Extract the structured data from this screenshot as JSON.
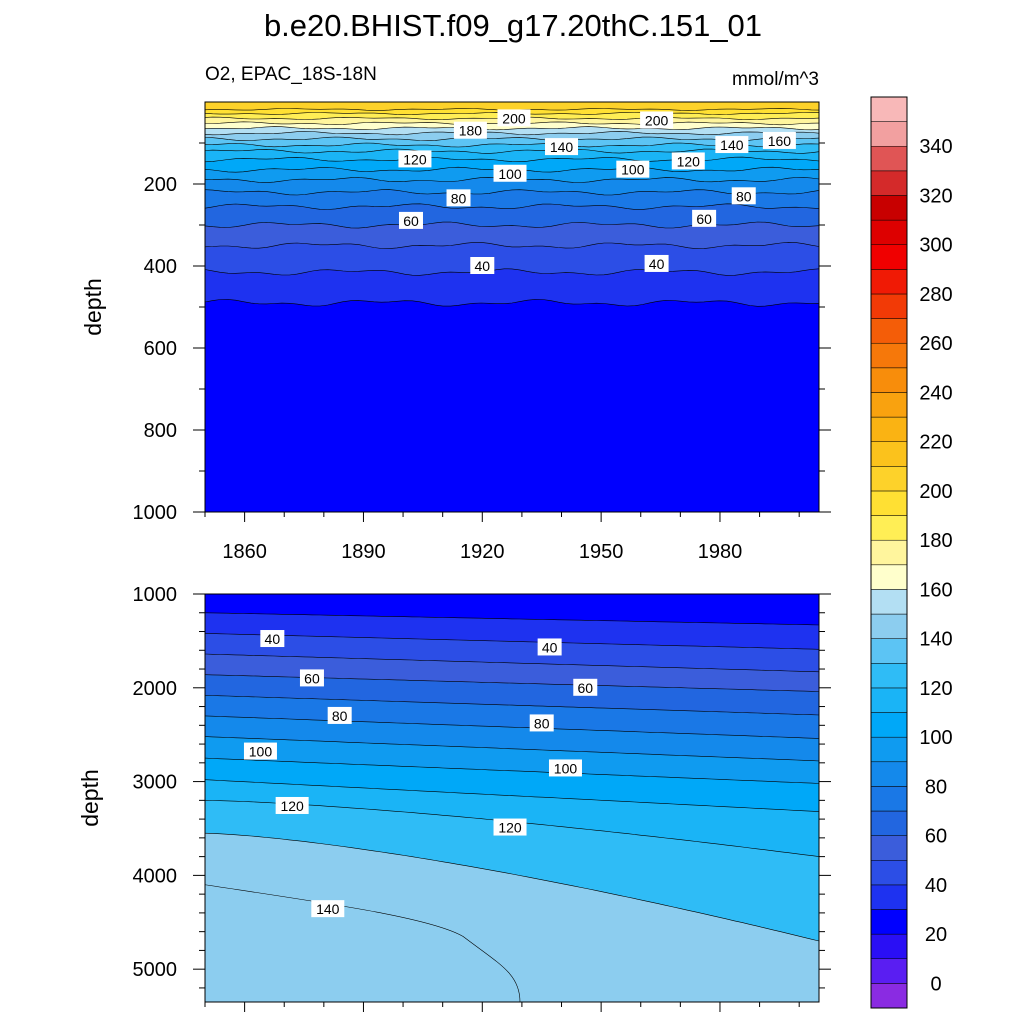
{
  "title": "b.e20.BHIST.f09_g17.20thC.151_01",
  "chart_data": [
    {
      "type": "contour",
      "panel": "upper",
      "left_label": "O2, EPAC_18S-18N",
      "right_label": "mmol/m^3",
      "ylabel": "depth",
      "xlabel": "",
      "x_range": [
        1850,
        2005
      ],
      "y_range": [
        0,
        1000
      ],
      "y_reversed": true,
      "y_ticks": [
        200,
        400,
        600,
        800,
        1000
      ],
      "x_ticks": [
        1860,
        1890,
        1920,
        1950,
        1980
      ],
      "y_tick_labels": [
        "200",
        "400",
        "600",
        "800",
        "1000"
      ],
      "x_tick_labels": [
        "1860",
        "1890",
        "1920",
        "1950",
        "1980"
      ],
      "contour_depths": [
        {
          "level": 200,
          "depth": 18
        },
        {
          "level": 190,
          "depth": 28
        },
        {
          "level": 180,
          "depth": 40
        },
        {
          "level": 170,
          "depth": 52
        },
        {
          "level": 160,
          "depth": 64
        },
        {
          "level": 150,
          "depth": 76
        },
        {
          "level": 140,
          "depth": 90
        },
        {
          "level": 130,
          "depth": 105
        },
        {
          "level": 120,
          "depth": 120
        },
        {
          "level": 110,
          "depth": 140
        },
        {
          "level": 100,
          "depth": 165
        },
        {
          "level": 90,
          "depth": 190
        },
        {
          "level": 80,
          "depth": 220
        },
        {
          "level": 70,
          "depth": 255
        },
        {
          "level": 60,
          "depth": 300
        },
        {
          "level": 50,
          "depth": 350
        },
        {
          "level": 40,
          "depth": 415
        },
        {
          "level": 30,
          "depth": 490
        }
      ],
      "contour_labels": [
        {
          "text": "200",
          "x": 1928,
          "depth": 40
        },
        {
          "text": "200",
          "x": 1964,
          "depth": 45
        },
        {
          "text": "180",
          "x": 1917,
          "depth": 70
        },
        {
          "text": "160",
          "x": 1995,
          "depth": 95
        },
        {
          "text": "140",
          "x": 1940,
          "depth": 110
        },
        {
          "text": "140",
          "x": 1983,
          "depth": 105
        },
        {
          "text": "120",
          "x": 1903,
          "depth": 140
        },
        {
          "text": "120",
          "x": 1972,
          "depth": 145
        },
        {
          "text": "100",
          "x": 1958,
          "depth": 165
        },
        {
          "text": "100",
          "x": 1927,
          "depth": 175
        },
        {
          "text": "80",
          "x": 1914,
          "depth": 235
        },
        {
          "text": "80",
          "x": 1986,
          "depth": 230
        },
        {
          "text": "60",
          "x": 1902,
          "depth": 290
        },
        {
          "text": "60",
          "x": 1976,
          "depth": 285
        },
        {
          "text": "40",
          "x": 1920,
          "depth": 400
        },
        {
          "text": "40",
          "x": 1964,
          "depth": 395
        }
      ]
    },
    {
      "type": "contour",
      "panel": "lower",
      "ylabel": "depth",
      "xlabel": "",
      "x_range": [
        1850,
        2005
      ],
      "y_range": [
        1000,
        5350
      ],
      "y_reversed": true,
      "y_ticks": [
        1000,
        2000,
        3000,
        4000,
        5000
      ],
      "y_tick_labels": [
        "1000",
        "2000",
        "3000",
        "4000",
        "5000"
      ],
      "contour_depths": [
        {
          "level": 30,
          "left": 1200,
          "right": 1330
        },
        {
          "level": 40,
          "left": 1420,
          "right": 1590
        },
        {
          "level": 50,
          "left": 1640,
          "right": 1830
        },
        {
          "level": 60,
          "left": 1860,
          "right": 2040
        },
        {
          "level": 70,
          "left": 2080,
          "right": 2290
        },
        {
          "level": 80,
          "left": 2300,
          "right": 2540
        },
        {
          "level": 90,
          "left": 2520,
          "right": 2780
        },
        {
          "level": 100,
          "left": 2750,
          "right": 3020
        },
        {
          "level": 110,
          "left": 2980,
          "right": 3320
        },
        {
          "level": 120,
          "left": 3200,
          "right": 3800
        },
        {
          "level": 130,
          "left": 3550,
          "right": 4700
        }
      ],
      "contour_labels": [
        {
          "text": "40",
          "x": 1867,
          "depth": 1480
        },
        {
          "text": "40",
          "x": 1937,
          "depth": 1570
        },
        {
          "text": "60",
          "x": 1877,
          "depth": 1900
        },
        {
          "text": "60",
          "x": 1946,
          "depth": 2000
        },
        {
          "text": "80",
          "x": 1884,
          "depth": 2300
        },
        {
          "text": "80",
          "x": 1935,
          "depth": 2380
        },
        {
          "text": "100",
          "x": 1864,
          "depth": 2680
        },
        {
          "text": "100",
          "x": 1941,
          "depth": 2860
        },
        {
          "text": "120",
          "x": 1872,
          "depth": 3260
        },
        {
          "text": "120",
          "x": 1927,
          "depth": 3490
        },
        {
          "text": "140",
          "x": 1881,
          "depth": 4360
        }
      ]
    },
    {
      "type": "colorbar",
      "levels": [
        -10,
        0,
        10,
        20,
        30,
        40,
        50,
        60,
        70,
        80,
        90,
        100,
        110,
        120,
        130,
        140,
        150,
        160,
        170,
        180,
        190,
        200,
        210,
        220,
        230,
        240,
        250,
        260,
        270,
        280,
        290,
        300,
        310,
        320,
        330,
        340,
        350,
        360
      ],
      "colors": [
        "#8a2be2",
        "#5a1ef2",
        "#2a0ff5",
        "#0000ff",
        "#1e32f0",
        "#2c4ee6",
        "#3b5ddb",
        "#2266e0",
        "#1a78e6",
        "#1489eb",
        "#0f9bf0",
        "#00a8f8",
        "#1ab4f6",
        "#2fbcf6",
        "#5cc4f4",
        "#8ccdef",
        "#b3dff3",
        "#ffffcc",
        "#fff59d",
        "#ffee55",
        "#ffe033",
        "#fdd22a",
        "#fbc21c",
        "#fab313",
        "#f9a20f",
        "#f88d0b",
        "#f6780a",
        "#f45d08",
        "#f23a06",
        "#f01a05",
        "#f00000",
        "#dd0000",
        "#c80000",
        "#d42a2a",
        "#e05555",
        "#f2a0a0",
        "#f8b8b8"
      ],
      "tick_labels": [
        "0",
        "20",
        "40",
        "60",
        "80",
        "100",
        "120",
        "140",
        "160",
        "180",
        "200",
        "220",
        "240",
        "260",
        "280",
        "300",
        "320",
        "340"
      ]
    }
  ]
}
